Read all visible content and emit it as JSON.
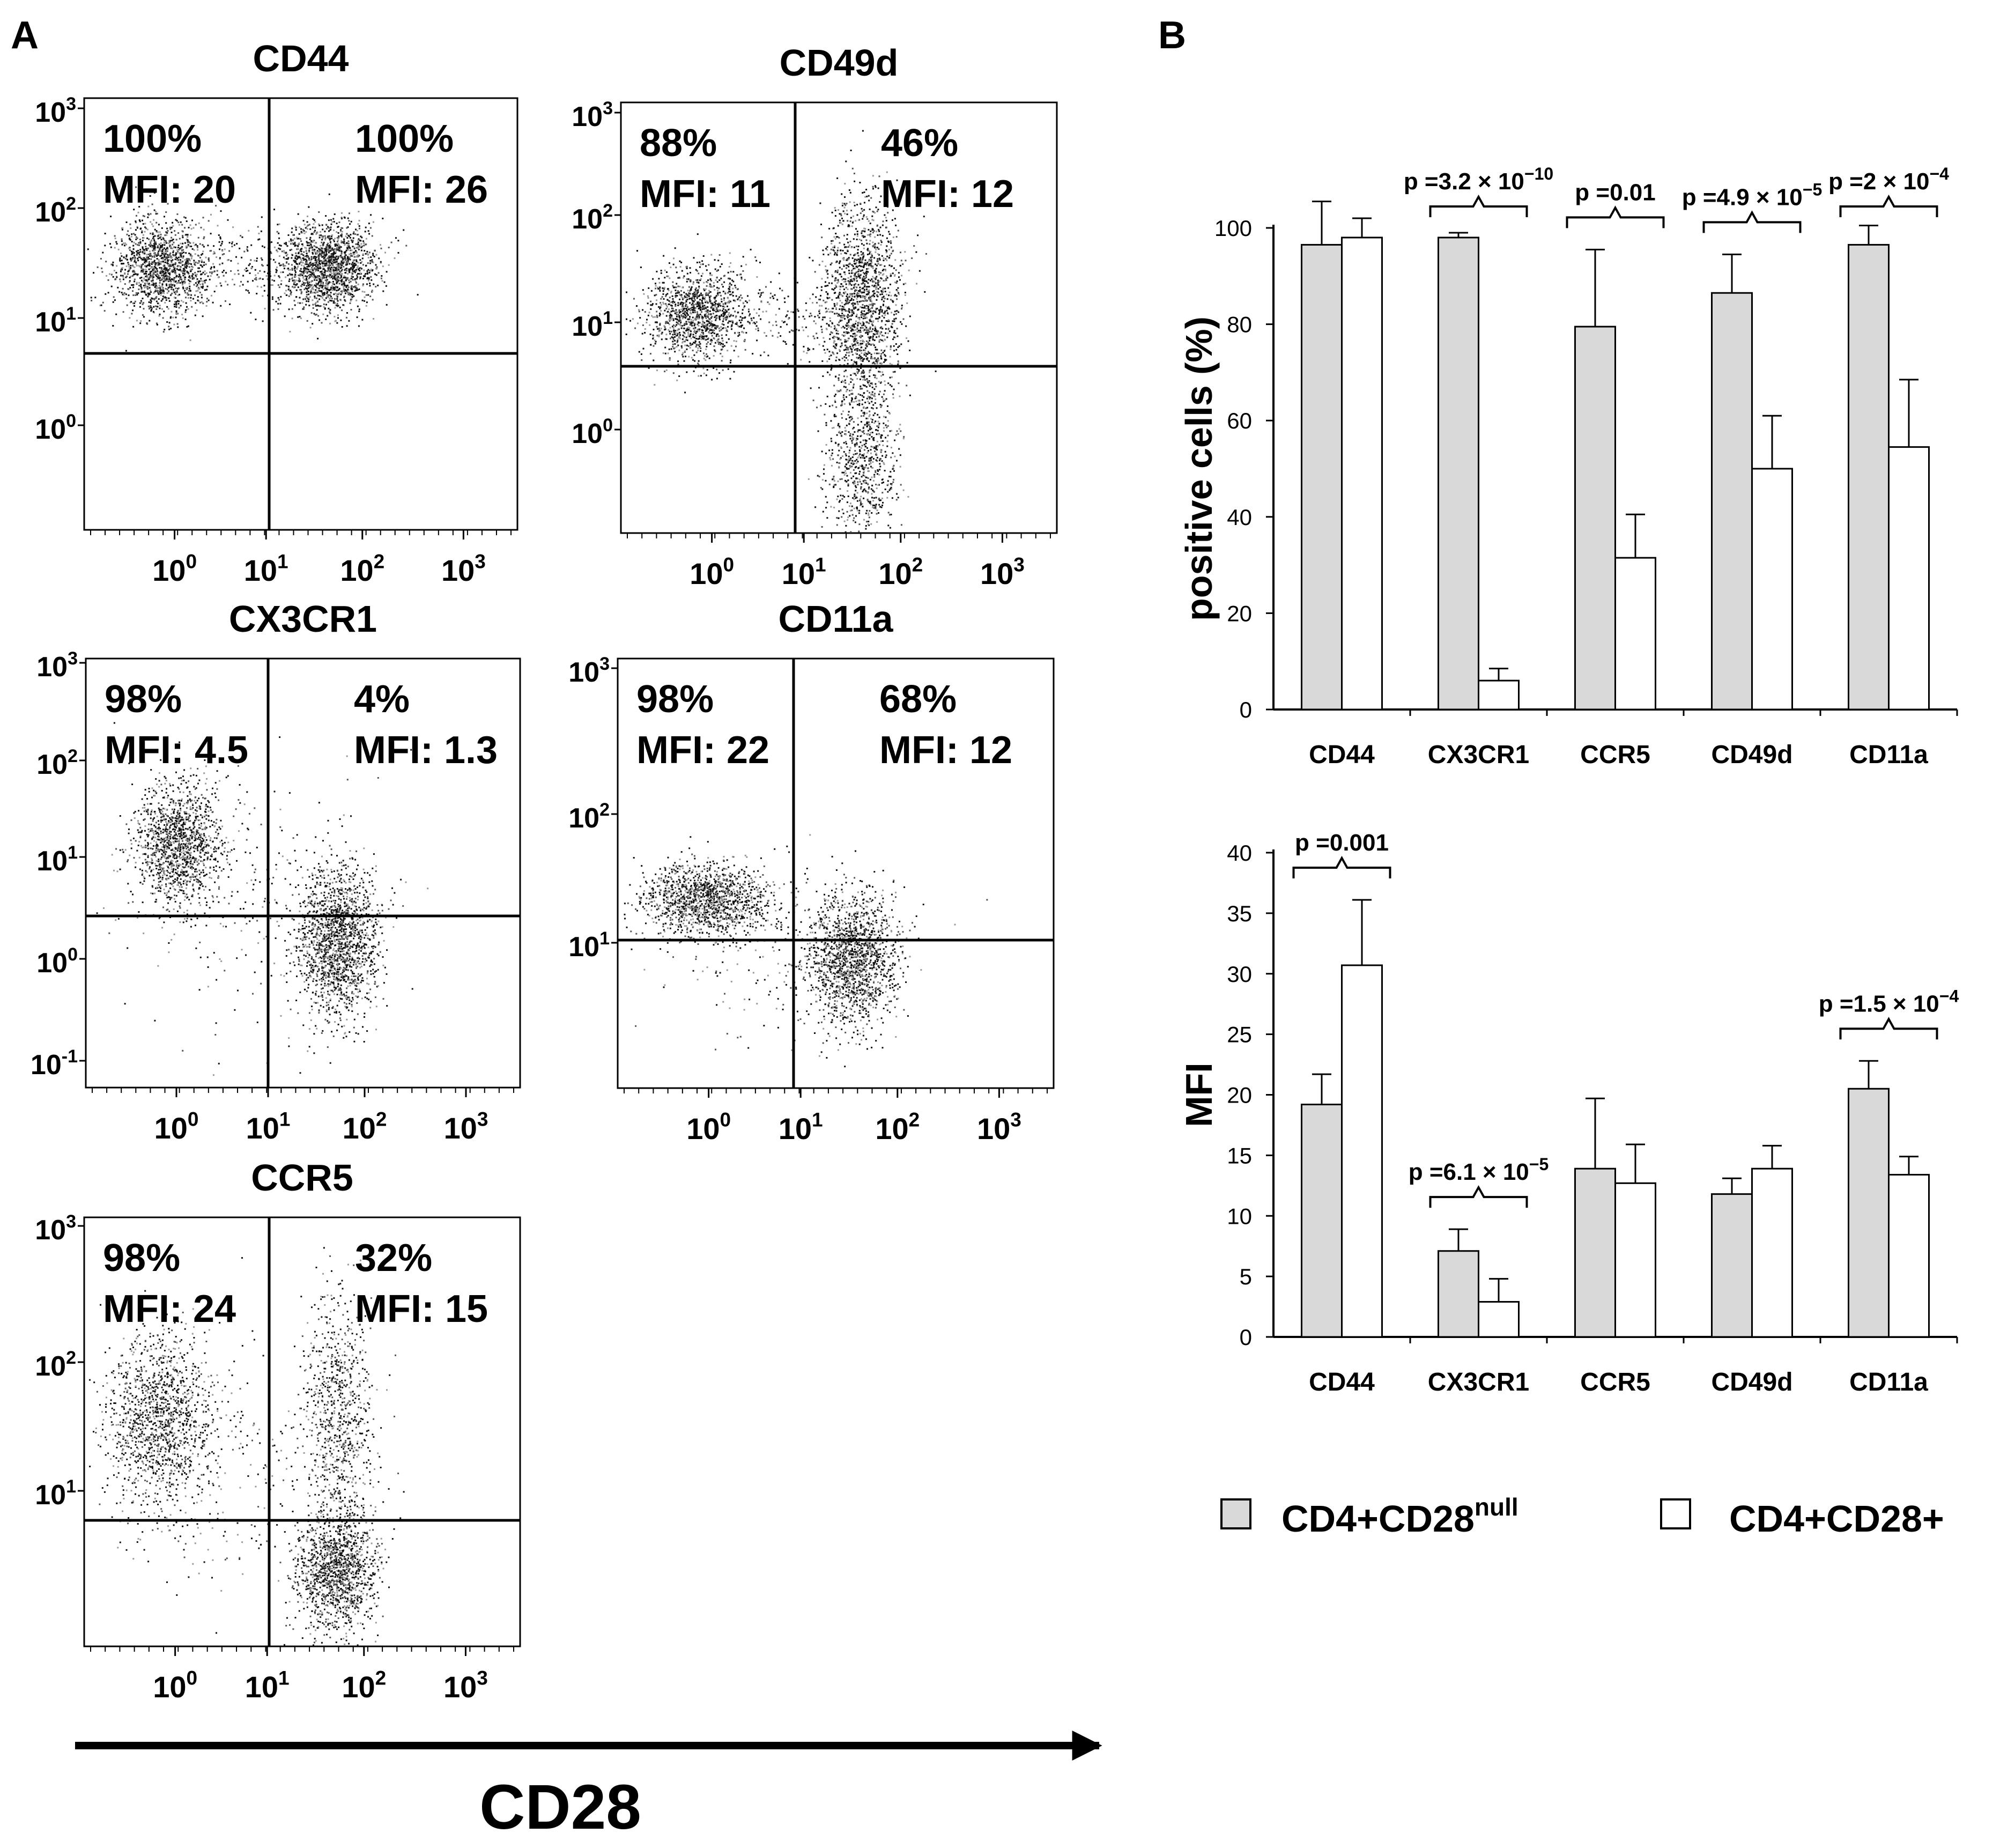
{
  "figure": {
    "panel_a_label": "A",
    "panel_b_label": "B",
    "x_axis_label": "CD28"
  },
  "flow_panels": [
    {
      "title": "CD44",
      "left_pct": "100%",
      "left_mfi": "MFI: 20",
      "right_pct": "100%",
      "right_mfi": "MFI: 26",
      "y_ticks": [
        {
          "base": "10",
          "exp": "3"
        },
        {
          "base": "10",
          "exp": "2"
        },
        {
          "base": "10",
          "exp": "1"
        },
        {
          "base": "10",
          "exp": "0"
        }
      ]
    },
    {
      "title": "CD49d",
      "left_pct": "88%",
      "left_mfi": "MFI: 11",
      "right_pct": "46%",
      "right_mfi": "MFI: 12",
      "y_ticks": [
        {
          "base": "10",
          "exp": "3"
        },
        {
          "base": "10",
          "exp": "2"
        },
        {
          "base": "10",
          "exp": "1"
        },
        {
          "base": "10",
          "exp": "0"
        }
      ]
    },
    {
      "title": "CX3CR1",
      "left_pct": "98%",
      "left_mfi": "MFI: 4.5",
      "right_pct": "4%",
      "right_mfi": "MFI: 1.3",
      "y_ticks": [
        {
          "base": "10",
          "exp": "3"
        },
        {
          "base": "10",
          "exp": "2"
        },
        {
          "base": "10",
          "exp": "1"
        },
        {
          "base": "10",
          "exp": "0"
        },
        {
          "base": "10",
          "exp": "-1"
        }
      ]
    },
    {
      "title": "CD11a",
      "left_pct": "98%",
      "left_mfi": "MFI: 22",
      "right_pct": "68%",
      "right_mfi": "MFI: 12",
      "y_ticks": [
        {
          "base": "10",
          "exp": "3"
        },
        {
          "base": "10",
          "exp": "2"
        },
        {
          "base": "10",
          "exp": "1"
        }
      ]
    },
    {
      "title": "CCR5",
      "left_pct": "98%",
      "left_mfi": "MFI: 24",
      "right_pct": "32%",
      "right_mfi": "MFI: 15",
      "y_ticks": [
        {
          "base": "10",
          "exp": "3"
        },
        {
          "base": "10",
          "exp": "2"
        },
        {
          "base": "10",
          "exp": "1"
        }
      ]
    }
  ],
  "flow_x_ticks": [
    {
      "base": "10",
      "exp": "0"
    },
    {
      "base": "10",
      "exp": "1"
    },
    {
      "base": "10",
      "exp": "2"
    },
    {
      "base": "10",
      "exp": "3"
    }
  ],
  "legend": {
    "null_prefix": "CD4+CD28",
    "null_suffix": "null",
    "pos_label": "CD4+CD28+",
    "null_color": "#d9d9d9",
    "pos_color": "#ffffff"
  },
  "chart_data": [
    {
      "type": "bar",
      "title": "",
      "ylabel": "positive cells (%)",
      "xlabel": "",
      "ylim": [
        0,
        100
      ],
      "yticks": [
        0,
        20,
        40,
        60,
        80,
        100
      ],
      "categories": [
        "CD44",
        "CX3CR1",
        "CCR5",
        "CD49d",
        "CD11a"
      ],
      "series": [
        {
          "name": "CD4+CD28null",
          "color": "#d9d9d9",
          "values": [
            96.5,
            98,
            79.5,
            86.5,
            96.5
          ],
          "errors": [
            9,
            1,
            16,
            8,
            4
          ]
        },
        {
          "name": "CD4+CD28+",
          "color": "#ffffff",
          "values": [
            98,
            6,
            31.5,
            50,
            54.5
          ],
          "errors": [
            4,
            2.5,
            9,
            11,
            14
          ]
        }
      ],
      "pvalues": [
        {
          "category": 1,
          "base": "p =3.2 × 10",
          "exp": "−10"
        },
        {
          "category": 2,
          "base": "p =0.01",
          "exp": ""
        },
        {
          "category": 3,
          "base": "p =4.9 × 10",
          "exp": "−5"
        },
        {
          "category": 4,
          "base": "p =2 × 10",
          "exp": "−4"
        }
      ]
    },
    {
      "type": "bar",
      "title": "",
      "ylabel": "MFI",
      "xlabel": "",
      "ylim": [
        0,
        40
      ],
      "yticks": [
        0,
        5,
        10,
        15,
        20,
        25,
        30,
        35,
        40
      ],
      "categories": [
        "CD44",
        "CX3CR1",
        "CCR5",
        "CD49d",
        "CD11a"
      ],
      "series": [
        {
          "name": "CD4+CD28null",
          "color": "#d9d9d9",
          "values": [
            19.2,
            7.1,
            13.9,
            11.8,
            20.5
          ],
          "errors": [
            2.5,
            1.8,
            5.8,
            1.3,
            2.3
          ]
        },
        {
          "name": "CD4+CD28+",
          "color": "#ffffff",
          "values": [
            30.7,
            2.9,
            12.7,
            13.9,
            13.4
          ],
          "errors": [
            5.4,
            1.9,
            3.2,
            1.9,
            1.5
          ]
        }
      ],
      "pvalues": [
        {
          "category": 0,
          "base": "p =0.001",
          "exp": ""
        },
        {
          "category": 1,
          "base": "p =6.1 × 10",
          "exp": "−5"
        },
        {
          "category": 4,
          "base": "p =1.5 × 10",
          "exp": "−4"
        }
      ]
    }
  ]
}
